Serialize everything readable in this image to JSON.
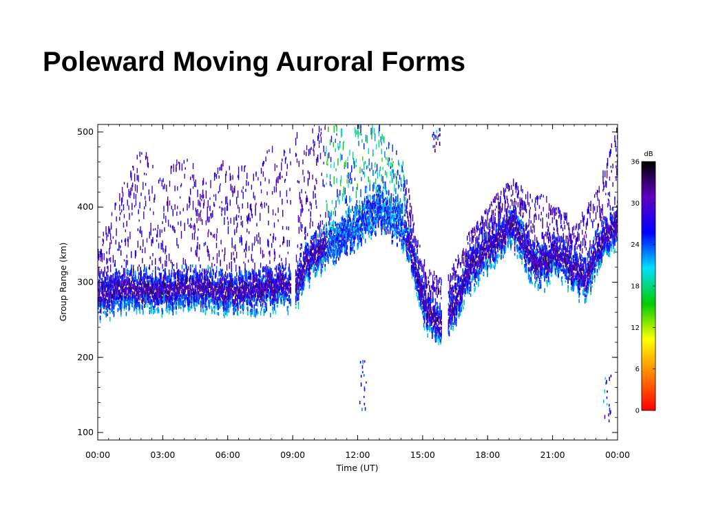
{
  "slide": {
    "title": "Poleward Moving Auroral Forms"
  },
  "chart_data": {
    "type": "heatmap",
    "title": "",
    "xlabel": "Time (UT)",
    "ylabel": "Group Range (km)",
    "x_ticks": [
      "00:00",
      "03:00",
      "06:00",
      "09:00",
      "12:00",
      "15:00",
      "18:00",
      "21:00",
      "00:00"
    ],
    "x_range_hours": [
      0,
      24
    ],
    "y_ticks": [
      100,
      200,
      300,
      400,
      500
    ],
    "ylim": [
      90,
      510
    ],
    "colorbar": {
      "label": "dB",
      "ticks": [
        0,
        6,
        12,
        18,
        24,
        30,
        36
      ],
      "range": [
        0,
        36
      ],
      "colors": [
        "#ff0000",
        "#ff8000",
        "#ffff00",
        "#00cc00",
        "#00e0ff",
        "#0000ff",
        "#6000c0",
        "#000000"
      ]
    },
    "echo_band": {
      "center_range_km": [
        [
          0.0,
          280
        ],
        [
          1.0,
          292
        ],
        [
          2.0,
          292
        ],
        [
          3.0,
          290
        ],
        [
          4.0,
          295
        ],
        [
          5.0,
          292
        ],
        [
          6.0,
          288
        ],
        [
          7.0,
          288
        ],
        [
          8.0,
          292
        ],
        [
          8.5,
          300
        ],
        [
          9.0,
          285
        ],
        [
          9.5,
          320
        ],
        [
          10.0,
          340
        ],
        [
          10.5,
          350
        ],
        [
          11.0,
          360
        ],
        [
          12.0,
          380
        ],
        [
          13.0,
          400
        ],
        [
          14.0,
          380
        ],
        [
          14.5,
          340
        ],
        [
          15.0,
          275
        ],
        [
          15.5,
          250
        ],
        [
          16.0,
          250
        ],
        [
          16.5,
          275
        ],
        [
          17.0,
          310
        ],
        [
          17.5,
          330
        ],
        [
          18.0,
          345
        ],
        [
          18.5,
          360
        ],
        [
          19.0,
          380
        ],
        [
          19.5,
          360
        ],
        [
          20.0,
          330
        ],
        [
          20.5,
          320
        ],
        [
          21.0,
          340
        ],
        [
          21.5,
          330
        ],
        [
          22.0,
          315
        ],
        [
          22.5,
          305
        ],
        [
          23.0,
          340
        ],
        [
          23.5,
          360
        ],
        [
          24.0,
          380
        ]
      ],
      "upper_extent_km": [
        [
          0.0,
          350
        ],
        [
          1.0,
          420
        ],
        [
          2.0,
          480
        ],
        [
          3.0,
          440
        ],
        [
          4.0,
          480
        ],
        [
          5.0,
          430
        ],
        [
          6.0,
          470
        ],
        [
          7.0,
          450
        ],
        [
          8.0,
          480
        ],
        [
          9.0,
          500
        ],
        [
          10.0,
          510
        ],
        [
          11.0,
          510
        ],
        [
          12.0,
          510
        ],
        [
          13.0,
          510
        ],
        [
          14.0,
          470
        ],
        [
          15.0,
          330
        ],
        [
          16.0,
          300
        ],
        [
          17.0,
          360
        ],
        [
          18.0,
          400
        ],
        [
          19.0,
          440
        ],
        [
          20.0,
          420
        ],
        [
          21.0,
          410
        ],
        [
          22.0,
          380
        ],
        [
          23.0,
          420
        ],
        [
          24.0,
          510
        ]
      ],
      "gaps_hours": [
        [
          8.9,
          9.1
        ],
        [
          15.85,
          16.15
        ]
      ]
    },
    "isolated_echoes": [
      {
        "time": 12.2,
        "range_km": [
          130,
          200
        ]
      },
      {
        "time": 23.5,
        "range_km": [
          110,
          190
        ]
      },
      {
        "time": 15.6,
        "range_km": [
          475,
          510
        ]
      }
    ]
  }
}
